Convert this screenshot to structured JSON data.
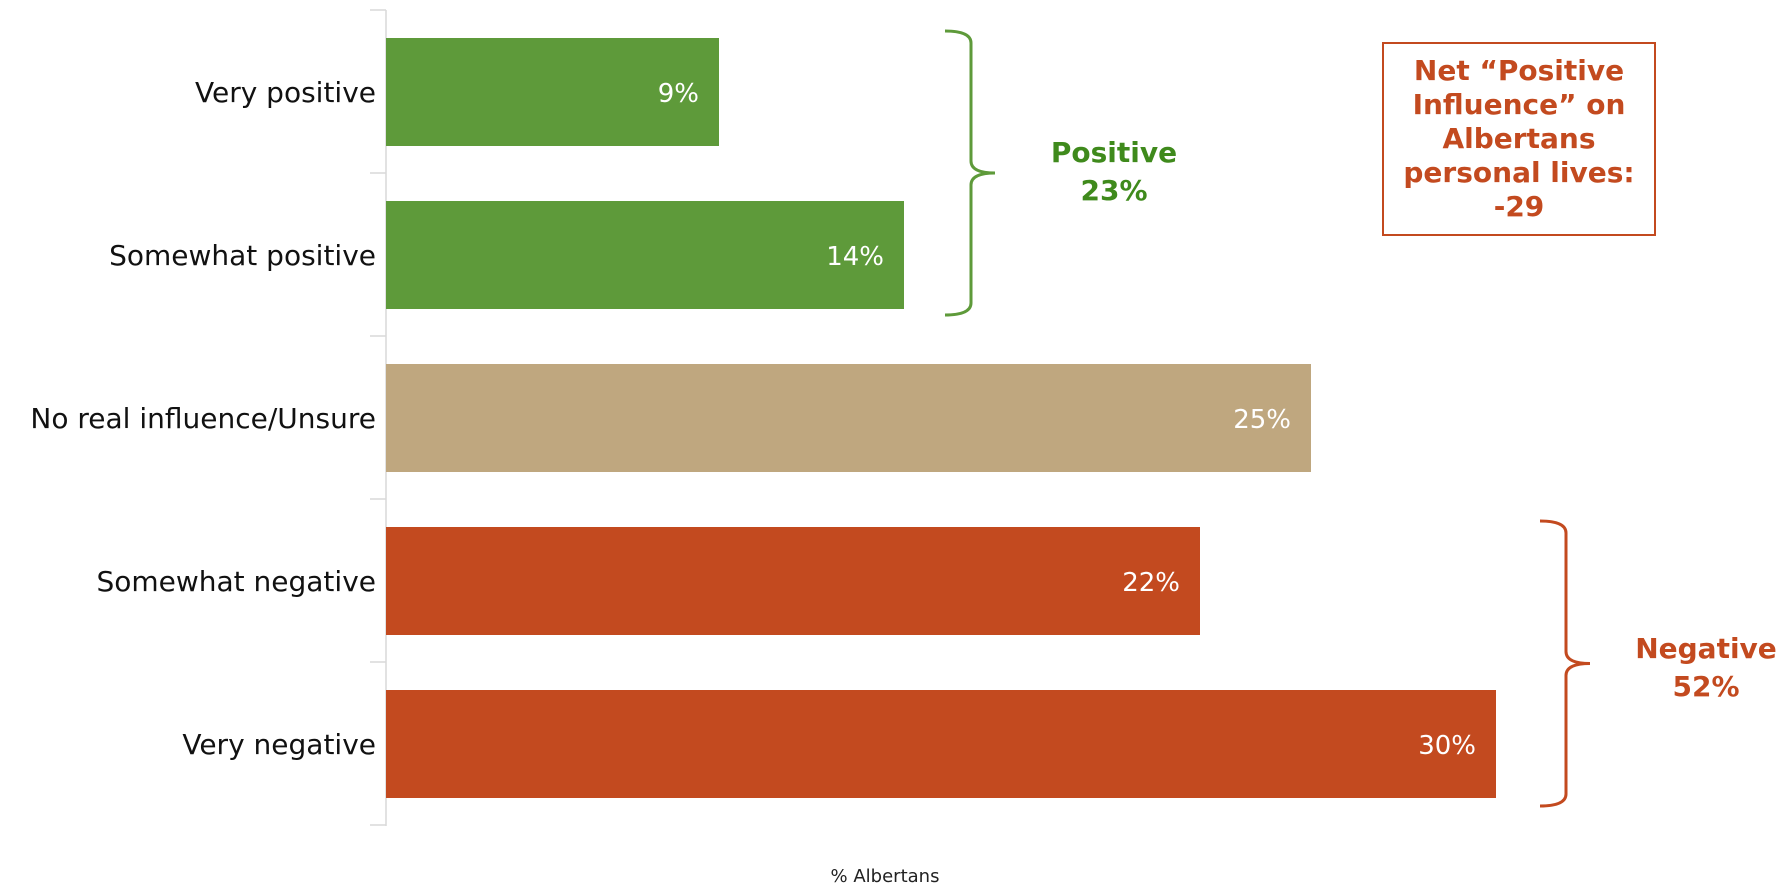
{
  "colors": {
    "positive": "#5e9a3a",
    "neutral": "#bfa77f",
    "negative": "#c34a1f",
    "positive_text": "#3f8a1c",
    "negative_text": "#c34a1f",
    "axis": "#d9d9d9"
  },
  "chart_data": {
    "type": "bar",
    "orientation": "horizontal",
    "categories": [
      "Very positive",
      "Somewhat positive",
      "No real influence/Unsure",
      "Somewhat negative",
      "Very negative"
    ],
    "values": [
      9,
      14,
      25,
      22,
      30
    ],
    "value_labels": [
      "9%",
      "14%",
      "25%",
      "22%",
      "30%"
    ],
    "bar_colors": [
      "positive",
      "positive",
      "neutral",
      "negative",
      "negative"
    ],
    "xlabel": "% Albertans",
    "ylabel": "",
    "xlim": [
      0,
      30
    ],
    "grid": false,
    "groups": [
      {
        "label": "Positive",
        "value": "23%",
        "categories": [
          "Very positive",
          "Somewhat positive"
        ],
        "color": "positive_text"
      },
      {
        "label": "Negative",
        "value": "52%",
        "categories": [
          "Somewhat negative",
          "Very negative"
        ],
        "color": "negative_text"
      }
    ]
  },
  "annotation": {
    "text": "Net “Positive\nInfluence” on\nAlbertans\npersonal lives:\n-29"
  }
}
